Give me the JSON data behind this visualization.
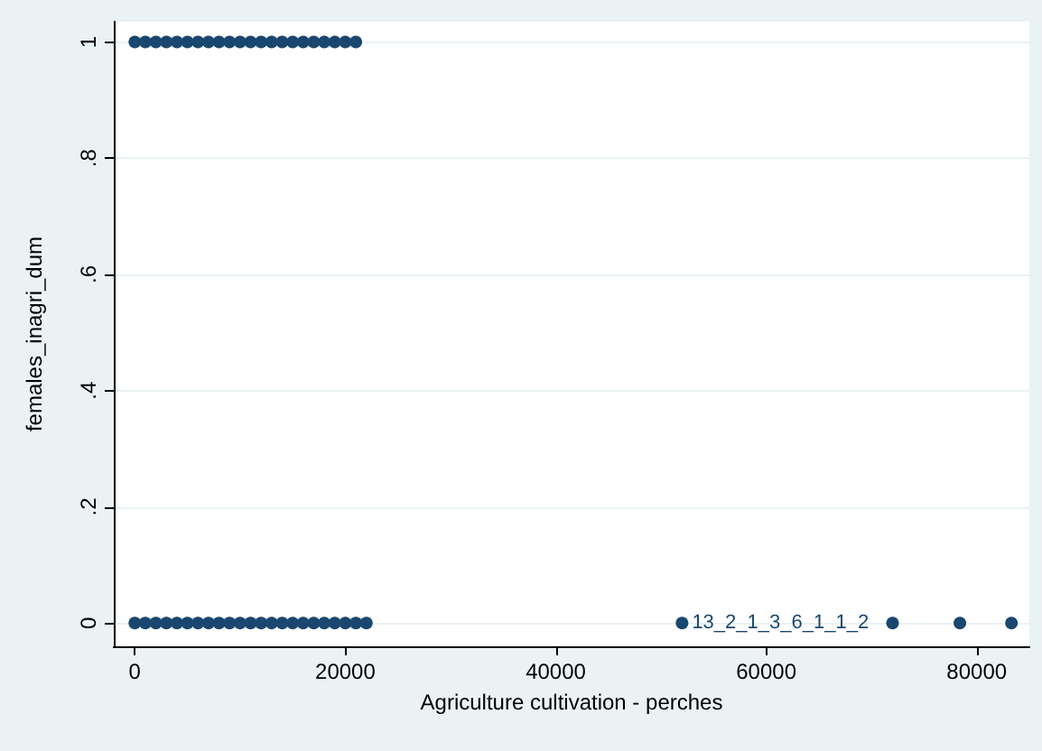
{
  "chart_data": {
    "type": "scatter",
    "xlabel": "Agriculture cultivation - perches",
    "ylabel": "females_inagri_dum",
    "xlim": [
      -2000,
      85000
    ],
    "xticks": [
      0,
      20000,
      40000,
      60000,
      80000
    ],
    "ylim": [
      -0.04,
      1.035
    ],
    "yticks": [
      0,
      {
        "value": 0.2,
        "label": ".2"
      },
      {
        "value": 0.4,
        "label": ".4"
      },
      {
        "value": 0.6,
        "label": ".6"
      },
      {
        "value": 0.8,
        "label": ".8"
      },
      1
    ],
    "grid": "y",
    "marker": "circle",
    "series": [
      {
        "color": "#1a476f",
        "x": [
          0,
          1000,
          2000,
          3000,
          4000,
          5000,
          6000,
          7000,
          8000,
          9000,
          10000,
          11000,
          12000,
          13000,
          14000,
          15000,
          16000,
          17000,
          18000,
          19000,
          20000,
          21000,
          22000,
          52000,
          72000,
          78400,
          83300,
          0,
          1000,
          2000,
          3000,
          4000,
          5000,
          6000,
          7000,
          8000,
          9000,
          10000,
          11000,
          12000,
          13000,
          14000,
          15000,
          16000,
          17000,
          18000,
          19000,
          20000,
          21000
        ],
        "values": [
          0,
          0,
          0,
          0,
          0,
          0,
          0,
          0,
          0,
          0,
          0,
          0,
          0,
          0,
          0,
          0,
          0,
          0,
          0,
          0,
          0,
          0,
          0,
          0,
          0,
          0,
          0,
          1,
          1,
          1,
          1,
          1,
          1,
          1,
          1,
          1,
          1,
          1,
          1,
          1,
          1,
          1,
          1,
          1,
          1,
          1,
          1,
          1,
          1
        ],
        "value_labels": [
          null,
          null,
          null,
          null,
          null,
          null,
          null,
          null,
          null,
          null,
          null,
          null,
          null,
          null,
          null,
          null,
          null,
          null,
          null,
          null,
          null,
          null,
          null,
          "13_2_1_3_6_1_1_2",
          null,
          null,
          null,
          null,
          null,
          null,
          null,
          null,
          null,
          null,
          null,
          null,
          null,
          null,
          null,
          null,
          null,
          null,
          null,
          null,
          null,
          null,
          null,
          null,
          null
        ]
      }
    ]
  }
}
